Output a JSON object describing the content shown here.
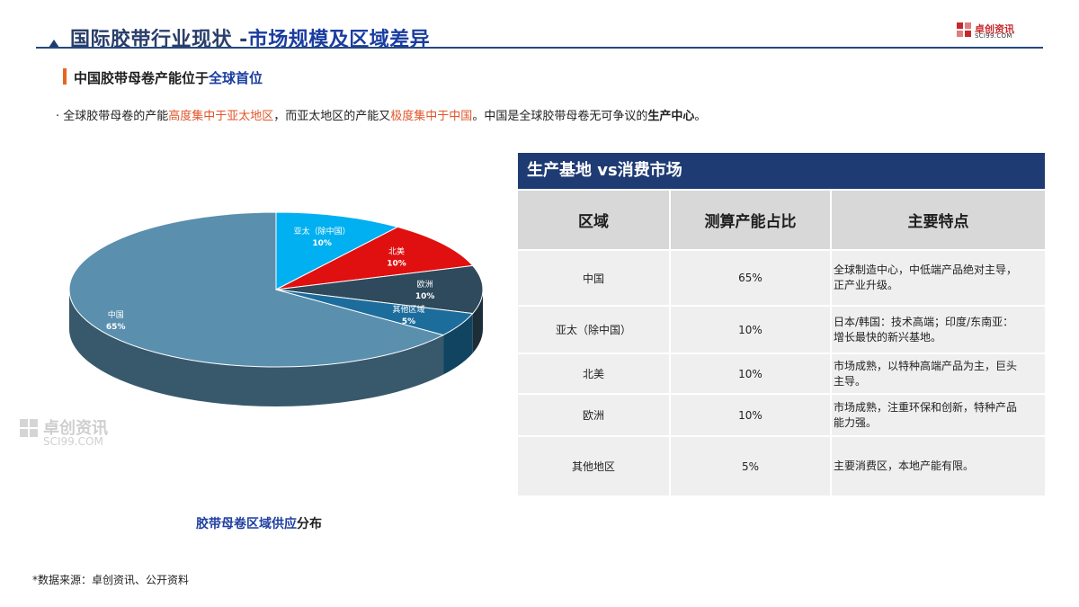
{
  "header": {
    "title_main": "国际胶带行业现状 -",
    "title_accent": "市场规模及区域差异"
  },
  "logo": {
    "name": "卓创资讯",
    "url_text": "SCI99.COM"
  },
  "subtitle": {
    "prefix": "中国胶带母卷产能位于",
    "highlight": "全球首位"
  },
  "bullet": {
    "parts": [
      "· 全球胶带母卷的产能",
      "高度集中于亚太地区",
      "，而亚太地区的产能又",
      "极度集中于中国",
      "。中国是全球胶带母卷无可争议的",
      "生产中心",
      "。"
    ]
  },
  "chart_data": {
    "type": "pie",
    "title": "胶带母卷区域供应分布",
    "categories": [
      "中国",
      "亚太（除中国）",
      "北美",
      "欧洲",
      "其他区域"
    ],
    "values": [
      65,
      10,
      10,
      10,
      5
    ],
    "value_labels": [
      "65%",
      "10%",
      "10%",
      "10%",
      "5%"
    ],
    "colors": [
      "#5a8fae",
      "#00b0f0",
      "#e01010",
      "#2e4a5c",
      "#1c6d9c"
    ],
    "style": "3d"
  },
  "chart_caption": {
    "accent": "胶带母卷区域供应",
    "rest": "分布"
  },
  "watermark": {
    "name": "卓创资讯",
    "url_text": "SCI99.COM"
  },
  "table": {
    "title": "生产基地 vs消费市场",
    "headers": [
      "区域",
      "测算产能占比",
      "主要特点"
    ],
    "rows": [
      {
        "region": "中国",
        "share": "65%",
        "feature": [
          "全球制造中心，中低端产品绝对主导，",
          "正产业升级。"
        ]
      },
      {
        "region": "亚太（除中国）",
        "share": "10%",
        "feature": [
          "日本/韩国：技术高端；印度/东南亚：",
          "增长最快的新兴基地。"
        ]
      },
      {
        "region": "北美",
        "share": "10%",
        "feature": [
          "市场成熟，以特种高端产品为主，巨头",
          "主导。"
        ]
      },
      {
        "region": "欧洲",
        "share": "10%",
        "feature": [
          "市场成熟，注重环保和创新，特种产品",
          "能力强。"
        ]
      },
      {
        "region": "其他地区",
        "share": "5%",
        "feature": [
          "主要消费区，本地产能有限。"
        ]
      }
    ]
  },
  "source": "*数据来源：卓创资讯、公开资料"
}
